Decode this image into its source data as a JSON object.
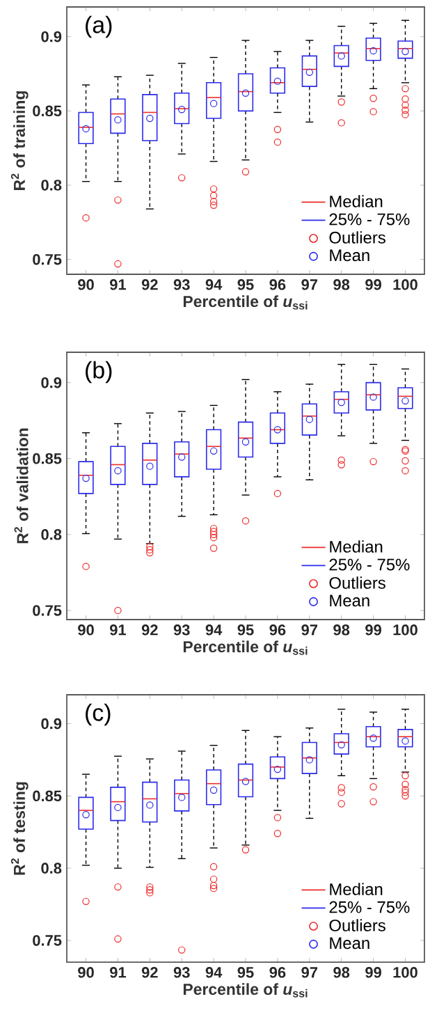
{
  "chart_data": [
    {
      "type": "box",
      "annotations": [
        "(a)",
        "Median"
      ],
      "xlabel": "Percentile of *u*$_{ssi}$",
      "ylabel": "R$^{2}$ of training",
      "categories": [
        "90",
        "91",
        "92",
        "93",
        "94",
        "95",
        "96",
        "97",
        "98",
        "99",
        "100"
      ],
      "ylim": [
        0.74,
        0.92
      ],
      "yticks": [
        0.75,
        0.8,
        0.85,
        0.9
      ],
      "legend": "bottom right",
      "series": [
        {
          "name": "25% - 75%",
          "color": "#2a2aee",
          "boxes": [
            {
              "low": 0.8025,
              "q1": 0.828,
              "median": 0.839,
              "q3": 0.849,
              "high": 0.8675
            },
            {
              "low": 0.8025,
              "q1": 0.835,
              "median": 0.848,
              "q3": 0.858,
              "high": 0.873
            },
            {
              "low": 0.784,
              "q1": 0.83,
              "median": 0.849,
              "q3": 0.861,
              "high": 0.874
            },
            {
              "low": 0.821,
              "q1": 0.8415,
              "median": 0.8515,
              "q3": 0.862,
              "high": 0.882
            },
            {
              "low": 0.816,
              "q1": 0.845,
              "median": 0.859,
              "q3": 0.869,
              "high": 0.886
            },
            {
              "low": 0.817,
              "q1": 0.85,
              "median": 0.863,
              "q3": 0.875,
              "high": 0.8975
            },
            {
              "low": 0.849,
              "q1": 0.862,
              "median": 0.869,
              "q3": 0.879,
              "high": 0.89
            },
            {
              "low": 0.8425,
              "q1": 0.8665,
              "median": 0.878,
              "q3": 0.887,
              "high": 0.8975
            },
            {
              "low": 0.86,
              "q1": 0.88,
              "median": 0.889,
              "q3": 0.894,
              "high": 0.907
            },
            {
              "low": 0.865,
              "q1": 0.884,
              "median": 0.892,
              "q3": 0.899,
              "high": 0.909
            },
            {
              "low": 0.869,
              "q1": 0.8855,
              "median": 0.892,
              "q3": 0.897,
              "high": 0.911
            }
          ]
        },
        {
          "type": "scatter",
          "name": "Outliers",
          "color": "#ee2a2a",
          "marker": "circle",
          "x": [
            "90",
            "91",
            "91",
            "93",
            "94",
            "94",
            "94",
            "94",
            "95",
            "96",
            "96",
            "98",
            "98",
            "99",
            "99",
            "100",
            "100",
            "100",
            "100",
            "100"
          ],
          "values": [
            0.778,
            0.79,
            0.747,
            0.805,
            0.7975,
            0.793,
            0.789,
            0.7865,
            0.809,
            0.8375,
            0.829,
            0.856,
            0.842,
            0.8585,
            0.8495,
            0.865,
            0.858,
            0.854,
            0.8505,
            0.8475
          ]
        },
        {
          "type": "scatter",
          "name": "Mean",
          "color": "#2a2aee",
          "marker": "circle",
          "x": [
            "90",
            "91",
            "92",
            "93",
            "94",
            "95",
            "96",
            "97",
            "98",
            "99",
            "100"
          ],
          "values": [
            0.838,
            0.844,
            0.845,
            0.851,
            0.855,
            0.862,
            0.87,
            0.876,
            0.887,
            0.8905,
            0.89
          ]
        }
      ]
    },
    {
      "type": "box",
      "annotations": [
        "(b)",
        "Median"
      ],
      "xlabel": "Percentile of *u*$_{ssi}$",
      "ylabel": "R$^{2}$ of validation",
      "categories": [
        "90",
        "91",
        "92",
        "93",
        "94",
        "95",
        "96",
        "97",
        "98",
        "99",
        "100"
      ],
      "ylim": [
        0.744,
        0.92
      ],
      "yticks": [
        0.75,
        0.8,
        0.85,
        0.9
      ],
      "legend": "bottom right",
      "series": [
        {
          "name": "25% - 75%",
          "color": "#2a2aee",
          "boxes": [
            {
              "low": 0.8006,
              "q1": 0.827,
              "median": 0.839,
              "q3": 0.848,
              "high": 0.867
            },
            {
              "low": 0.797,
              "q1": 0.833,
              "median": 0.846,
              "q3": 0.858,
              "high": 0.873
            },
            {
              "low": 0.794,
              "q1": 0.833,
              "median": 0.849,
              "q3": 0.86,
              "high": 0.88
            },
            {
              "low": 0.812,
              "q1": 0.838,
              "median": 0.853,
              "q3": 0.861,
              "high": 0.881
            },
            {
              "low": 0.813,
              "q1": 0.843,
              "median": 0.858,
              "q3": 0.869,
              "high": 0.885
            },
            {
              "low": 0.826,
              "q1": 0.851,
              "median": 0.8635,
              "q3": 0.874,
              "high": 0.902
            },
            {
              "low": 0.838,
              "q1": 0.86,
              "median": 0.869,
              "q3": 0.88,
              "high": 0.894
            },
            {
              "low": 0.836,
              "q1": 0.8655,
              "median": 0.878,
              "q3": 0.886,
              "high": 0.899
            },
            {
              "low": 0.865,
              "q1": 0.88,
              "median": 0.889,
              "q3": 0.894,
              "high": 0.912
            },
            {
              "low": 0.86,
              "q1": 0.882,
              "median": 0.892,
              "q3": 0.9,
              "high": 0.912
            },
            {
              "low": 0.862,
              "q1": 0.883,
              "median": 0.891,
              "q3": 0.8966,
              "high": 0.909
            }
          ]
        },
        {
          "type": "scatter",
          "name": "Outliers",
          "color": "#ee2a2a",
          "marker": "circle",
          "x": [
            "90",
            "91",
            "92",
            "92",
            "92",
            "94",
            "94",
            "94",
            "94",
            "94",
            "95",
            "96",
            "98",
            "98",
            "99",
            "100",
            "100",
            "100",
            "100"
          ],
          "values": [
            0.779,
            0.75,
            0.792,
            0.79,
            0.788,
            0.804,
            0.802,
            0.8,
            0.798,
            0.791,
            0.809,
            0.827,
            0.849,
            0.846,
            0.848,
            0.856,
            0.855,
            0.8485,
            0.842
          ]
        },
        {
          "type": "scatter",
          "name": "Mean",
          "color": "#2a2aee",
          "marker": "circle",
          "x": [
            "90",
            "91",
            "92",
            "93",
            "94",
            "95",
            "96",
            "97",
            "98",
            "99",
            "100"
          ],
          "values": [
            0.837,
            0.842,
            0.845,
            0.851,
            0.855,
            0.861,
            0.869,
            0.8758,
            0.887,
            0.8905,
            0.888
          ]
        }
      ]
    },
    {
      "type": "box",
      "annotations": [
        "(c)",
        "Median"
      ],
      "xlabel": "Percentile of *u*$_{ssi}$",
      "ylabel": "R$^{2}$ of testing",
      "categories": [
        "90",
        "91",
        "92",
        "93",
        "94",
        "95",
        "96",
        "97",
        "98",
        "99",
        "100"
      ],
      "ylim": [
        0.735,
        0.92
      ],
      "yticks": [
        0.75,
        0.8,
        0.85,
        0.9
      ],
      "legend": "bottom right",
      "series": [
        {
          "name": "25% - 75%",
          "color": "#2a2aee",
          "boxes": [
            {
              "low": 0.802,
              "q1": 0.827,
              "median": 0.84,
              "q3": 0.849,
              "high": 0.865
            },
            {
              "low": 0.8,
              "q1": 0.833,
              "median": 0.846,
              "q3": 0.856,
              "high": 0.8775
            },
            {
              "low": 0.8006,
              "q1": 0.832,
              "median": 0.848,
              "q3": 0.8595,
              "high": 0.8756
            },
            {
              "low": 0.8066,
              "q1": 0.8396,
              "median": 0.8516,
              "q3": 0.861,
              "high": 0.881
            },
            {
              "low": 0.814,
              "q1": 0.844,
              "median": 0.8585,
              "q3": 0.868,
              "high": 0.885
            },
            {
              "low": 0.816,
              "q1": 0.8494,
              "median": 0.861,
              "q3": 0.872,
              "high": 0.8953
            },
            {
              "low": 0.84,
              "q1": 0.862,
              "median": 0.87,
              "q3": 0.877,
              "high": 0.891
            },
            {
              "low": 0.8345,
              "q1": 0.8655,
              "median": 0.8763,
              "q3": 0.887,
              "high": 0.897
            },
            {
              "low": 0.864,
              "q1": 0.879,
              "median": 0.887,
              "q3": 0.893,
              "high": 0.91
            },
            {
              "low": 0.862,
              "q1": 0.884,
              "median": 0.891,
              "q3": 0.898,
              "high": 0.908
            },
            {
              "low": 0.8665,
              "q1": 0.884,
              "median": 0.891,
              "q3": 0.896,
              "high": 0.91
            }
          ]
        },
        {
          "type": "scatter",
          "name": "Outliers",
          "color": "#ee2a2a",
          "marker": "circle",
          "x": [
            "90",
            "91",
            "91",
            "92",
            "92",
            "92",
            "93",
            "94",
            "94",
            "94",
            "94",
            "95",
            "96",
            "96",
            "98",
            "98",
            "98",
            "99",
            "99",
            "100",
            "100",
            "100",
            "100",
            "100"
          ],
          "values": [
            0.777,
            0.787,
            0.751,
            0.787,
            0.785,
            0.783,
            0.7434,
            0.801,
            0.7924,
            0.788,
            0.786,
            0.8127,
            0.835,
            0.824,
            0.8557,
            0.8525,
            0.8446,
            0.8563,
            0.846,
            0.864,
            0.858,
            0.8544,
            0.8525,
            0.85
          ]
        },
        {
          "type": "scatter",
          "name": "Mean",
          "color": "#2a2aee",
          "marker": "circle",
          "x": [
            "90",
            "91",
            "92",
            "93",
            "94",
            "95",
            "96",
            "97",
            "98",
            "99",
            "100"
          ],
          "values": [
            0.837,
            0.842,
            0.8437,
            0.849,
            0.854,
            0.86,
            0.8684,
            0.875,
            0.8854,
            0.89,
            0.888
          ]
        }
      ]
    }
  ]
}
